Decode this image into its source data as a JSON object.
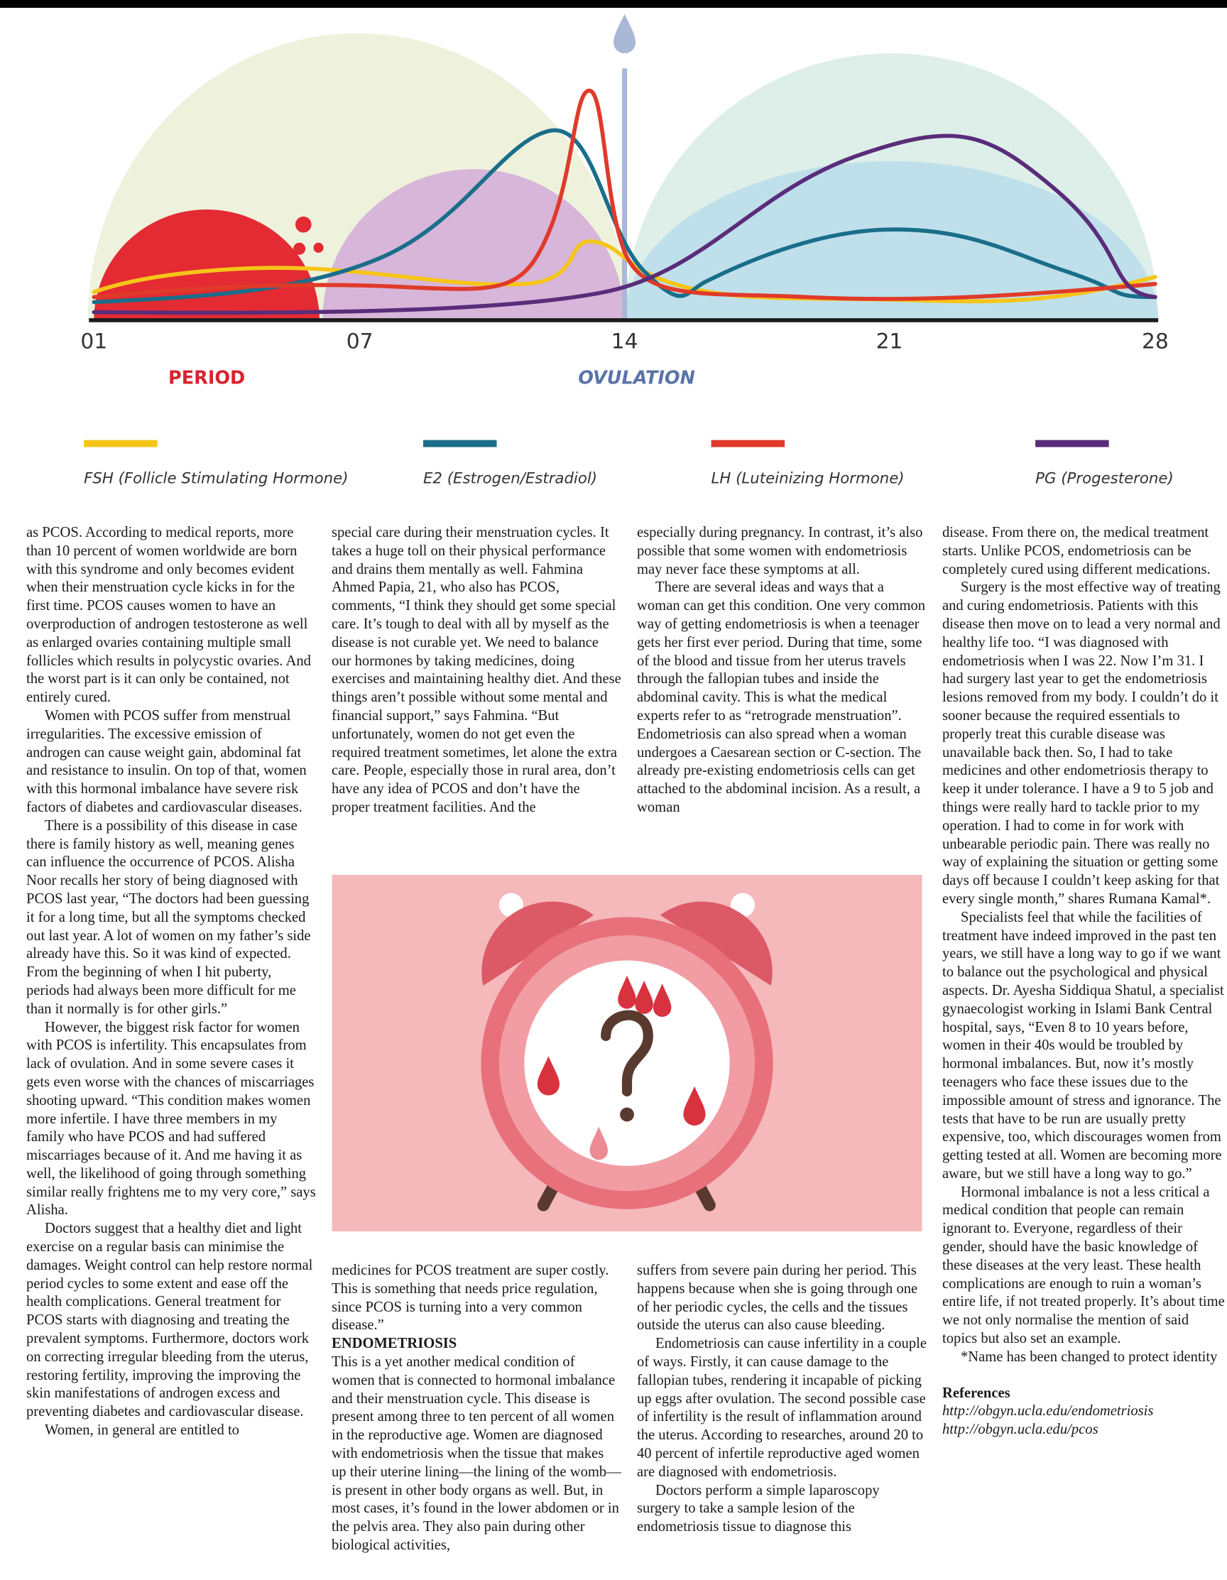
{
  "chart": {
    "ticks": [
      "01",
      "07",
      "14",
      "21",
      "28"
    ],
    "period": "PERIOD",
    "ovulation": "OVULATION",
    "legend": [
      "FSH (Follicle Stimulating Hormone)",
      "E2 (Estrogen/Estradiol)",
      "LH (Luteinizing Hormone)",
      "PG (Progesterone)"
    ]
  },
  "columns": {
    "col1": [
      "as PCOS. According to medical reports, more than 10 percent of women worldwide are born with this syndrome and only becomes evident when their menstruation cycle kicks in for the first time. PCOS causes women to have an overproduction of androgen testosterone as well as enlarged ovaries containing multiple small follicles which results in polycystic ovaries. And the worst part is it can only be contained, not entirely cured.",
      "Women with PCOS suffer from menstrual irregularities. The excessive emission of androgen can cause weight gain, abdominal fat and resistance to insulin. On top of that, women with this hormonal imbalance have severe risk factors of diabetes and cardiovascular diseases.",
      "There is a possibility of this disease in case there is family history as well, meaning genes can influence the occurrence of PCOS. Alisha Noor recalls her story of being diagnosed with PCOS last year, “The doctors had been guessing it for a long time, but all the symptoms checked out last year. A lot of women on my father’s side already have this. So it was kind of expected. From the beginning of when I hit puberty, periods had always been more difficult for me than it normally is for other girls.”",
      "However, the biggest risk factor for women with PCOS is infertility. This encapsulates from lack of ovulation. And in some severe cases it gets even worse with the chances of miscarriages shooting upward. “This condition makes women more infertile. I have three members in my family who have PCOS and had suffered miscarriages because of it. And me having it as well, the likelihood of going through something similar really frightens me to my very core,” says Alisha.",
      "Doctors suggest that a healthy diet and light exercise on a regular basis can minimise the damages. Weight control can help restore normal period cycles to some extent and ease off the health complications. General treatment for PCOS starts with diagnosing and treating the prevalent symptoms. Furthermore, doctors work on correcting irregular bleeding from the uterus, restoring fertility, improving the improving the skin manifestations of androgen excess and preventing diabetes and cardiovascular disease.",
      "Women, in general are entitled to"
    ],
    "col2_top": [
      "special care during their menstruation cycles. It takes a huge toll on their physical performance and drains them mentally as well. Fahmina Ahmed Papia, 21, who also has PCOS, comments, “I think they should get some special care. It’s tough to deal with all by myself as the disease is not curable yet. We need to balance our hormones by taking medicines, doing exercises and maintaining healthy diet. And these things aren’t possible without some mental and financial support,” says Fahmina. “But unfortunately, women do not get even the required treatment sometimes, let alone the extra care. People, especially those in rural area, don’t have any idea of PCOS and don’t have the proper treatment facilities. And the"
    ],
    "col2_bottom": [
      "medicines for PCOS treatment are super costly. This is something that needs price regulation, since PCOS is turning into a very common disease.”"
    ],
    "heading": "ENDOMETRIOSIS",
    "col2_after": [
      "This is a yet another medical condition of women that is connected to hormonal imbalance and their menstruation cycle. This disease is present among three to ten percent of all women in the reproductive age. Women are diagnosed with endometriosis when the tissue that makes up their uterine lining—the lining of the womb—is present in other body organs as well. But, in most cases, it’s found in the lower abdomen or in the pelvis area. They also pain during other biological activities,"
    ],
    "col3_top": [
      "especially during pregnancy. In contrast, it’s also possible that some women with endometriosis may never face these symptoms at all.",
      "There are several ideas and ways that a woman can get this condition. One very common way of getting endometriosis is when a teenager gets her first ever period. During that time, some of the blood and tissue from her uterus travels through the fallopian tubes and inside the abdominal cavity. This is what the medical experts refer to as “retrograde menstruation”. Endometriosis can also spread when a woman undergoes a Caesarean section or C-section. The already pre-existing endometriosis cells can get attached to the abdominal incision. As a result, a woman"
    ],
    "col3_bottom": [
      "suffers from severe pain during her period. This happens because when she is going through one of her periodic cycles, the cells and the tissues outside the uterus can also cause bleeding.",
      "Endometriosis can cause infertility in a couple of ways. Firstly, it can cause damage to the fallopian tubes, rendering it incapable of picking up eggs after ovulation. The second possible case of infertility is the result of inflammation around the uterus. According to researches, around 20 to 40 percent of infertile reproductive aged women are diagnosed with endometriosis.",
      "Doctors perform a simple laparoscopy surgery to take a sample lesion of the endometriosis tissue to diagnose this"
    ],
    "col4": [
      "disease. From there on, the medical treatment starts. Unlike PCOS, endometriosis can be completely cured using different medications.",
      "Surgery is the most effective way of treating and curing endometriosis. Patients with this disease then move on to lead a very normal and healthy life too. “I was diagnosed with endometriosis when I was 22. Now I’m 31. I had surgery last year to get the endometriosis lesions removed from my body. I couldn’t do it sooner because the required essentials to properly treat this curable disease was unavailable back then. So, I had to take medicines and other endometriosis therapy to keep it under tolerance. I have a 9 to 5 job and things were really hard to tackle prior to my operation. I had to come in for work with unbearable periodic pain. There was really no way of explaining the situation or getting some days off because I couldn’t keep asking for that every single month,” shares Rumana Kamal*.",
      "Specialists feel that while the facilities of treatment have indeed improved in the past ten years, we still have a long way to go if we want to balance out the psychological and physical aspects. Dr. Ayesha Siddiqua Shatul, a specialist gynaecologist working in Islami Bank Central hospital, says, “Even 8 to 10 years before, women in their 40s would be troubled by hormonal imbalances. But, now it’s mostly teenagers who face these issues due to the impossible amount of stress and ignorance. The tests that have to be run are usually pretty expensive, too, which discourages women from getting tested at all. Women are becoming more aware, but we still have a long way to go.”",
      "Hormonal imbalance is not a less critical a medical condition that people can remain ignorant to. Everyone, regardless of their gender, should have the basic knowledge of these diseases at the very least. These health complications are enough to ruin a woman’s entire life, if not treated properly. It’s about time we not only normalise the mention of said topics but also set an example.",
      "*Name has been changed to protect identity"
    ],
    "references_title": "References",
    "references": [
      "http://obgyn.ucla.edu/endometriosis",
      "http://obgyn.ucla.edu/pcos"
    ]
  }
}
